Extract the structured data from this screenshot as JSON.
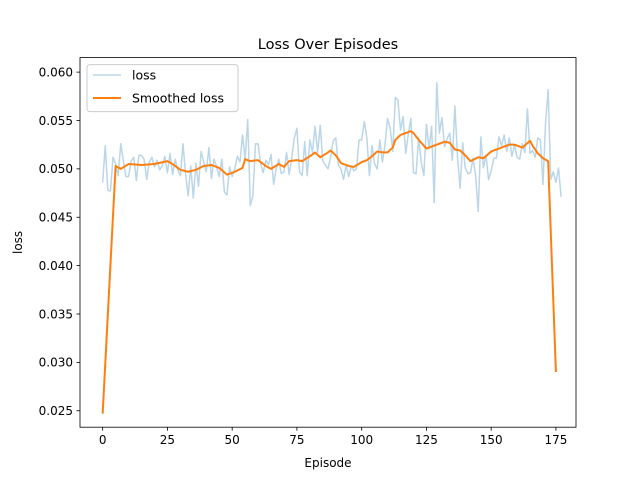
{
  "chart_data": {
    "type": "line",
    "title": "Loss Over Episodes",
    "xlabel": "Episode",
    "ylabel": "loss",
    "xlim": [
      -8.75,
      182.75
    ],
    "ylim": [
      0.0233,
      0.0615
    ],
    "xticks": [
      0,
      25,
      50,
      75,
      100,
      125,
      150,
      175
    ],
    "yticks": [
      0.025,
      0.03,
      0.035,
      0.04,
      0.045,
      0.05,
      0.055,
      0.06
    ],
    "ytick_labels": [
      "0.025",
      "0.030",
      "0.035",
      "0.040",
      "0.045",
      "0.050",
      "0.055",
      "0.060"
    ],
    "grid": false,
    "legend_position": "upper-left",
    "series": [
      {
        "name": "loss",
        "color": "#1f77b4",
        "opacity": 0.3,
        "x_start": 0,
        "x_step": 1,
        "values": [
          0.0486,
          0.0524,
          0.0478,
          0.0477,
          0.0512,
          0.0505,
          0.0493,
          0.0526,
          0.0508,
          0.0492,
          0.0492,
          0.0508,
          0.0512,
          0.0488,
          0.0514,
          0.0514,
          0.051,
          0.0489,
          0.0507,
          0.0512,
          0.0502,
          0.0509,
          0.0499,
          0.0503,
          0.0513,
          0.0496,
          0.0516,
          0.0494,
          0.051,
          0.0499,
          0.0493,
          0.0526,
          0.0495,
          0.0472,
          0.0503,
          0.047,
          0.0506,
          0.0482,
          0.0518,
          0.0507,
          0.0497,
          0.0522,
          0.049,
          0.051,
          0.0502,
          0.0492,
          0.051,
          0.0476,
          0.0473,
          0.0502,
          0.0492,
          0.05,
          0.0513,
          0.0507,
          0.0535,
          0.051,
          0.0551,
          0.0462,
          0.0472,
          0.0526,
          0.0526,
          0.0505,
          0.0496,
          0.0509,
          0.0504,
          0.0515,
          0.0484,
          0.05,
          0.051,
          0.0495,
          0.0497,
          0.0517,
          0.0494,
          0.0511,
          0.0532,
          0.0542,
          0.0497,
          0.0493,
          0.0528,
          0.0493,
          0.053,
          0.0517,
          0.0544,
          0.0517,
          0.0545,
          0.0508,
          0.0504,
          0.05,
          0.0512,
          0.0529,
          0.0532,
          0.0504,
          0.05,
          0.0489,
          0.0504,
          0.0492,
          0.0503,
          0.0498,
          0.05,
          0.053,
          0.053,
          0.0549,
          0.0532,
          0.0493,
          0.0524,
          0.0505,
          0.05,
          0.053,
          0.0507,
          0.0525,
          0.0552,
          0.0542,
          0.0518,
          0.0574,
          0.0571,
          0.054,
          0.0554,
          0.0516,
          0.0536,
          0.0552,
          0.0496,
          0.0495,
          0.0532,
          0.0507,
          0.0493,
          0.0546,
          0.0521,
          0.0544,
          0.0465,
          0.0589,
          0.0537,
          0.0553,
          0.0523,
          0.0531,
          0.0537,
          0.0509,
          0.0565,
          0.0512,
          0.048,
          0.0527,
          0.0501,
          0.0495,
          0.0496,
          0.0511,
          0.0493,
          0.0456,
          0.0533,
          0.0501,
          0.0514,
          0.0489,
          0.0498,
          0.0511,
          0.0511,
          0.0533,
          0.0524,
          0.0535,
          0.0518,
          0.0532,
          0.0513,
          0.0525,
          0.0512,
          0.051,
          0.0526,
          0.0517,
          0.0562,
          0.0516,
          0.0519,
          0.0512,
          0.0532,
          0.053,
          0.0484,
          0.0548,
          0.0582,
          0.0489,
          0.0497,
          0.0486,
          0.0501,
          0.0471
        ]
      },
      {
        "name": "Smoothed loss",
        "color": "#ff7f0e",
        "opacity": 1,
        "points": [
          [
            0,
            0.0247
          ],
          [
            5,
            0.0503
          ],
          [
            7,
            0.05
          ],
          [
            10,
            0.0505
          ],
          [
            15,
            0.0504
          ],
          [
            20,
            0.0505
          ],
          [
            25,
            0.0508
          ],
          [
            27,
            0.0505
          ],
          [
            30,
            0.0499
          ],
          [
            33,
            0.0497
          ],
          [
            36,
            0.0499
          ],
          [
            39,
            0.0503
          ],
          [
            42,
            0.0504
          ],
          [
            45,
            0.0501
          ],
          [
            48,
            0.0494
          ],
          [
            51,
            0.0497
          ],
          [
            54,
            0.0501
          ],
          [
            55,
            0.051
          ],
          [
            57,
            0.0508
          ],
          [
            60,
            0.0509
          ],
          [
            63,
            0.0503
          ],
          [
            65,
            0.05
          ],
          [
            68,
            0.0505
          ],
          [
            70,
            0.0502
          ],
          [
            72,
            0.0508
          ],
          [
            75,
            0.0509
          ],
          [
            77,
            0.0508
          ],
          [
            80,
            0.0513
          ],
          [
            82,
            0.0517
          ],
          [
            84,
            0.0512
          ],
          [
            87,
            0.0517
          ],
          [
            88,
            0.0519
          ],
          [
            90,
            0.0514
          ],
          [
            92,
            0.0506
          ],
          [
            95,
            0.0503
          ],
          [
            97,
            0.0502
          ],
          [
            100,
            0.0507
          ],
          [
            102,
            0.0509
          ],
          [
            104,
            0.0513
          ],
          [
            106,
            0.0518
          ],
          [
            108,
            0.0517
          ],
          [
            110,
            0.0517
          ],
          [
            112,
            0.0522
          ],
          [
            113,
            0.053
          ],
          [
            115,
            0.0535
          ],
          [
            117,
            0.0537
          ],
          [
            119,
            0.0539
          ],
          [
            120,
            0.0537
          ],
          [
            122,
            0.053
          ],
          [
            125,
            0.0521
          ],
          [
            127,
            0.0523
          ],
          [
            130,
            0.0526
          ],
          [
            132,
            0.0528
          ],
          [
            134,
            0.0527
          ],
          [
            136,
            0.052
          ],
          [
            138,
            0.0519
          ],
          [
            140,
            0.0514
          ],
          [
            142,
            0.0508
          ],
          [
            145,
            0.0512
          ],
          [
            147,
            0.0511
          ],
          [
            150,
            0.0518
          ],
          [
            152,
            0.052
          ],
          [
            155,
            0.0523
          ],
          [
            157,
            0.0525
          ],
          [
            159,
            0.0525
          ],
          [
            162,
            0.0522
          ],
          [
            165,
            0.0529
          ],
          [
            166,
            0.0524
          ],
          [
            168,
            0.0516
          ],
          [
            170,
            0.0511
          ],
          [
            172,
            0.0508
          ],
          [
            175,
            0.029
          ]
        ]
      }
    ]
  }
}
